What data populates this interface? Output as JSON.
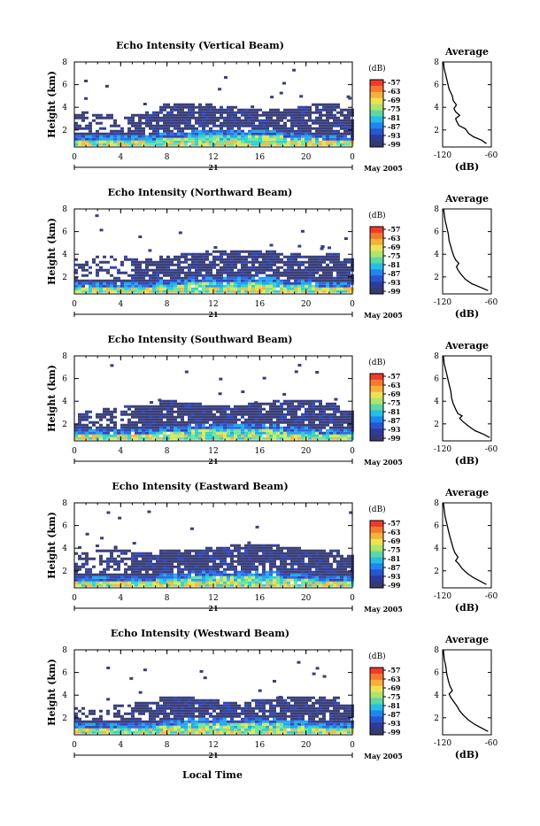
{
  "chart_data": [
    {
      "type": "heatmap",
      "title": "Echo Intensity (Vertical Beam)",
      "ylabel": "Height (km)",
      "xticks": [
        "0",
        "4",
        "8",
        "12",
        "16",
        "20",
        "0"
      ],
      "yticks": [
        "2",
        "4",
        "6",
        "8"
      ],
      "day_label": "21",
      "date_label": "May 2005",
      "colorbar": {
        "unit": "(dB)",
        "levels": [
          "-57",
          "-63",
          "-69",
          "-75",
          "-81",
          "-87",
          "-93",
          "-99"
        ]
      },
      "profile": {
        "title": "Average",
        "xlabel": "(dB)",
        "xticks": [
          "-120",
          "-60"
        ],
        "yticks": [
          "2",
          "4",
          "6",
          "8"
        ],
        "xlim": [
          -120,
          -60
        ],
        "ylim": [
          0.5,
          8
        ],
        "values": [
          [
            -66,
            0.8
          ],
          [
            -72,
            1.1
          ],
          [
            -82,
            1.4
          ],
          [
            -88,
            1.7
          ],
          [
            -92,
            2.1
          ],
          [
            -100,
            2.4
          ],
          [
            -103,
            2.8
          ],
          [
            -104,
            3.0
          ],
          [
            -99,
            3.3
          ],
          [
            -104,
            3.6
          ],
          [
            -106,
            3.9
          ],
          [
            -103,
            4.2
          ],
          [
            -107,
            4.6
          ],
          [
            -108,
            5.0
          ],
          [
            -112,
            5.6
          ],
          [
            -114,
            6.2
          ],
          [
            -116,
            6.8
          ],
          [
            -118,
            7.4
          ],
          [
            -119,
            8.0
          ]
        ]
      },
      "top_km": 3.8,
      "gaps": 0.32,
      "seed": 3
    },
    {
      "type": "heatmap",
      "title": "Echo Intensity (Northward Beam)",
      "ylabel": "Height (km)",
      "xticks": [
        "0",
        "4",
        "8",
        "12",
        "16",
        "20",
        "0"
      ],
      "yticks": [
        "2",
        "4",
        "6",
        "8"
      ],
      "day_label": "21",
      "date_label": "May 2005",
      "colorbar": {
        "unit": "(dB)",
        "levels": [
          "-57",
          "-63",
          "-69",
          "-75",
          "-81",
          "-87",
          "-93",
          "-99"
        ]
      },
      "profile": {
        "title": "Average",
        "xlabel": "(dB)",
        "xticks": [
          "-120",
          "-60"
        ],
        "yticks": [
          "2",
          "4",
          "6",
          "8"
        ],
        "xlim": [
          -120,
          -60
        ],
        "ylim": [
          0.5,
          8
        ],
        "values": [
          [
            -64,
            0.8
          ],
          [
            -74,
            1.1
          ],
          [
            -84,
            1.4
          ],
          [
            -92,
            1.8
          ],
          [
            -97,
            2.2
          ],
          [
            -101,
            2.6
          ],
          [
            -103,
            2.9
          ],
          [
            -100,
            3.2
          ],
          [
            -104,
            3.5
          ],
          [
            -106,
            3.8
          ],
          [
            -108,
            4.2
          ],
          [
            -110,
            4.7
          ],
          [
            -112,
            5.2
          ],
          [
            -113,
            5.8
          ],
          [
            -115,
            6.4
          ],
          [
            -117,
            7.0
          ],
          [
            -118,
            7.6
          ],
          [
            -119,
            8.0
          ]
        ]
      },
      "top_km": 3.9,
      "gaps": 0.36,
      "seed": 7
    },
    {
      "type": "heatmap",
      "title": "Echo Intensity (Southward Beam)",
      "ylabel": "Height (km)",
      "xticks": [
        "0",
        "4",
        "8",
        "12",
        "16",
        "20",
        "0"
      ],
      "yticks": [
        "2",
        "4",
        "6",
        "8"
      ],
      "day_label": "21",
      "date_label": "May 2005",
      "colorbar": {
        "unit": "(dB)",
        "levels": [
          "-57",
          "-63",
          "-69",
          "-75",
          "-81",
          "-87",
          "-93",
          "-99"
        ]
      },
      "profile": {
        "title": "Average",
        "xlabel": "(dB)",
        "xticks": [
          "-120",
          "-60"
        ],
        "yticks": [
          "2",
          "4",
          "6",
          "8"
        ],
        "xlim": [
          -120,
          -60
        ],
        "ylim": [
          0.5,
          8
        ],
        "values": [
          [
            -62,
            0.8
          ],
          [
            -70,
            1.1
          ],
          [
            -80,
            1.4
          ],
          [
            -88,
            1.8
          ],
          [
            -95,
            2.2
          ],
          [
            -99,
            2.5
          ],
          [
            -96,
            2.7
          ],
          [
            -101,
            2.9
          ],
          [
            -104,
            3.3
          ],
          [
            -107,
            3.8
          ],
          [
            -109,
            4.3
          ],
          [
            -110,
            4.9
          ],
          [
            -112,
            5.5
          ],
          [
            -114,
            6.1
          ],
          [
            -116,
            6.7
          ],
          [
            -118,
            7.3
          ],
          [
            -119,
            8.0
          ]
        ]
      },
      "top_km": 3.6,
      "gaps": 0.3,
      "seed": 11
    },
    {
      "type": "heatmap",
      "title": "Echo Intensity (Eastward Beam)",
      "ylabel": "Height (km)",
      "xticks": [
        "0",
        "4",
        "8",
        "12",
        "16",
        "20",
        "0"
      ],
      "yticks": [
        "2",
        "4",
        "6",
        "8"
      ],
      "day_label": "21",
      "date_label": "May 2005",
      "colorbar": {
        "unit": "(dB)",
        "levels": [
          "-57",
          "-63",
          "-69",
          "-75",
          "-81",
          "-87",
          "-93",
          "-99"
        ]
      },
      "profile": {
        "title": "Average",
        "xlabel": "(dB)",
        "xticks": [
          "-120",
          "-60"
        ],
        "yticks": [
          "2",
          "4",
          "6",
          "8"
        ],
        "xlim": [
          -120,
          -60
        ],
        "ylim": [
          0.5,
          8
        ],
        "values": [
          [
            -66,
            0.8
          ],
          [
            -74,
            1.1
          ],
          [
            -82,
            1.4
          ],
          [
            -90,
            1.8
          ],
          [
            -96,
            2.2
          ],
          [
            -100,
            2.6
          ],
          [
            -104,
            2.9
          ],
          [
            -101,
            3.2
          ],
          [
            -105,
            3.6
          ],
          [
            -107,
            4.0
          ],
          [
            -109,
            4.5
          ],
          [
            -111,
            5.0
          ],
          [
            -113,
            5.6
          ],
          [
            -115,
            6.2
          ],
          [
            -117,
            6.8
          ],
          [
            -118,
            7.4
          ],
          [
            -119,
            8.0
          ]
        ]
      },
      "top_km": 3.8,
      "gaps": 0.28,
      "seed": 19
    },
    {
      "type": "heatmap",
      "title": "Echo Intensity (Westward Beam)",
      "ylabel": "Height (km)",
      "xticks": [
        "0",
        "4",
        "8",
        "12",
        "16",
        "20",
        "0"
      ],
      "yticks": [
        "2",
        "4",
        "6",
        "8"
      ],
      "day_label": "21",
      "date_label": "May 2005",
      "colorbar": {
        "unit": "(dB)",
        "levels": [
          "-57",
          "-63",
          "-69",
          "-75",
          "-81",
          "-87",
          "-93",
          "-99"
        ]
      },
      "profile": {
        "title": "Average",
        "xlabel": "(dB)",
        "xticks": [
          "-120",
          "-60"
        ],
        "yticks": [
          "2",
          "4",
          "6",
          "8"
        ],
        "xlim": [
          -120,
          -60
        ],
        "ylim": [
          0.5,
          8
        ],
        "values": [
          [
            -64,
            0.8
          ],
          [
            -72,
            1.1
          ],
          [
            -80,
            1.4
          ],
          [
            -88,
            1.8
          ],
          [
            -94,
            2.2
          ],
          [
            -99,
            2.6
          ],
          [
            -102,
            3.0
          ],
          [
            -106,
            3.4
          ],
          [
            -110,
            3.8
          ],
          [
            -112,
            4.1
          ],
          [
            -108,
            4.4
          ],
          [
            -111,
            4.8
          ],
          [
            -113,
            5.3
          ],
          [
            -115,
            5.9
          ],
          [
            -116,
            6.5
          ],
          [
            -118,
            7.2
          ],
          [
            -119,
            8.0
          ]
        ]
      },
      "top_km": 3.4,
      "gaps": 0.4,
      "seed": 23
    }
  ],
  "footer": {
    "xlabel": "Local Time"
  }
}
